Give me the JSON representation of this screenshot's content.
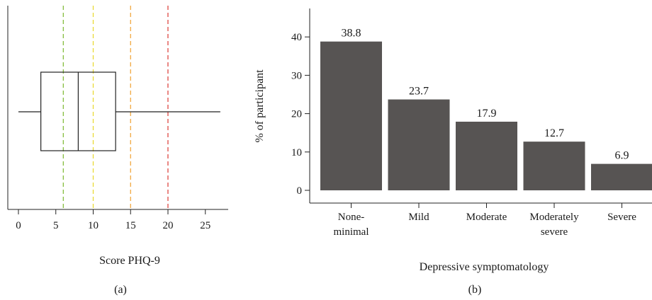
{
  "chart_data": [
    {
      "type": "box",
      "panel_label": "(a)",
      "xlabel": "Score PHQ-9",
      "ylabel": "",
      "xlim": [
        0,
        27
      ],
      "x_ticks": [
        0,
        5,
        10,
        15,
        20,
        25
      ],
      "x_tick_labels": [
        "0",
        "5",
        "10",
        "15",
        "20",
        "25"
      ],
      "box": {
        "whisker_low": 0,
        "q1": 3,
        "median": 8,
        "q3": 13,
        "whisker_high": 27
      },
      "cutoffs": [
        {
          "value": 6,
          "color": "#7cb82f"
        },
        {
          "value": 10,
          "color": "#e8d82a"
        },
        {
          "value": 15,
          "color": "#f0a030"
        },
        {
          "value": 20,
          "color": "#dd3a34"
        }
      ],
      "grid": false
    },
    {
      "type": "bar",
      "panel_label": "(b)",
      "categories": [
        "None-minimal",
        "Mild",
        "Moderate",
        "Moderately severe",
        "Severe"
      ],
      "category_lines": [
        [
          "None-",
          "minimal"
        ],
        [
          "Mild"
        ],
        [
          "Moderate"
        ],
        [
          "Moderately",
          "severe"
        ],
        [
          "Severe"
        ]
      ],
      "values": [
        38.8,
        23.7,
        17.9,
        12.7,
        6.9
      ],
      "value_labels": [
        "38.8",
        "23.7",
        "17.9",
        "12.7",
        "6.9"
      ],
      "xlabel": "Depressive symptomatology",
      "ylabel": "% of participant",
      "ylim": [
        0,
        40
      ],
      "y_ticks": [
        0,
        10,
        20,
        30,
        40
      ],
      "y_tick_labels": [
        "0",
        "10",
        "20",
        "30",
        "40"
      ],
      "bar_color": "#575453",
      "grid": false
    }
  ]
}
